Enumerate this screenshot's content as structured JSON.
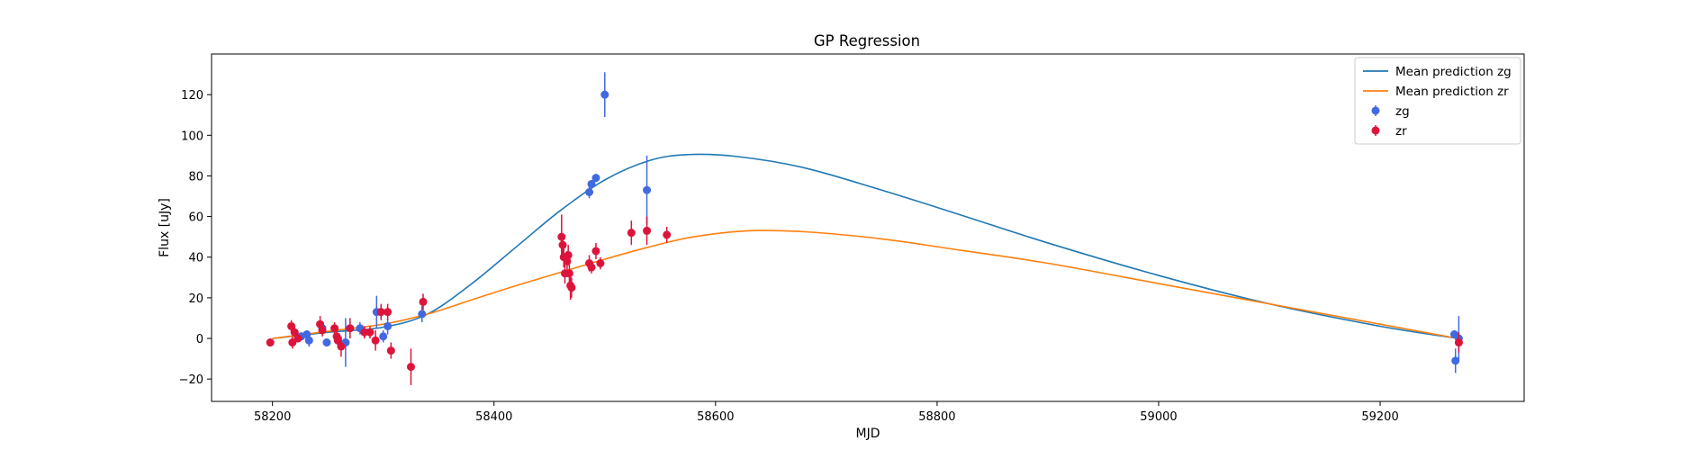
{
  "chart_data": {
    "type": "scatter",
    "title": "GP Regression",
    "xlabel": "MJD",
    "ylabel": "Flux [uJy]",
    "xlim": [
      58145,
      59330
    ],
    "ylim": [
      -31,
      140
    ],
    "xticks": [
      58200,
      58400,
      58600,
      58800,
      59000,
      59200
    ],
    "yticks": [
      -20,
      0,
      20,
      40,
      60,
      80,
      100,
      120
    ],
    "grid": false,
    "legend_position": "top-right",
    "lines": [
      {
        "name": "Mean prediction zg",
        "color": "#1f77b4",
        "x": [
          58200,
          58250,
          58300,
          58340,
          58380,
          58420,
          58460,
          58500,
          58540,
          58575,
          58620,
          58680,
          58750,
          58820,
          58900,
          59000,
          59100,
          59200,
          59270
        ],
        "y": [
          0,
          3,
          5.5,
          12,
          27,
          45,
          63,
          78,
          87.5,
          90.5,
          89.5,
          84,
          73,
          61,
          47,
          31,
          17,
          6,
          0
        ]
      },
      {
        "name": "Mean prediction zr",
        "color": "#ff7f0e",
        "x": [
          58200,
          58250,
          58300,
          58340,
          58380,
          58420,
          58460,
          58500,
          58540,
          58580,
          58630,
          58680,
          58750,
          58820,
          58900,
          59000,
          59100,
          59200,
          59270
        ],
        "y": [
          0,
          3.5,
          7,
          12,
          19,
          26,
          32.5,
          39,
          45,
          50,
          53,
          52.5,
          49,
          43.5,
          37,
          27,
          17,
          7,
          0
        ]
      }
    ],
    "series": [
      {
        "name": "zg",
        "color": "#4169e1",
        "points": [
          {
            "x": 58226,
            "y": 1,
            "err": 2
          },
          {
            "x": 58231,
            "y": 2,
            "err": 2
          },
          {
            "x": 58233,
            "y": -1,
            "err": 3
          },
          {
            "x": 58245,
            "y": 5,
            "err": 3
          },
          {
            "x": 58249,
            "y": -2,
            "err": 2
          },
          {
            "x": 58262,
            "y": -3,
            "err": 3
          },
          {
            "x": 58266,
            "y": -2,
            "err": 12
          },
          {
            "x": 58279,
            "y": 5,
            "err": 3
          },
          {
            "x": 58294,
            "y": 13,
            "err": 8
          },
          {
            "x": 58300,
            "y": 1,
            "err": 3
          },
          {
            "x": 58304,
            "y": 6,
            "err": 4
          },
          {
            "x": 58335,
            "y": 12,
            "err": 4
          },
          {
            "x": 58486,
            "y": 72,
            "err": 3
          },
          {
            "x": 58488,
            "y": 76,
            "err": 2
          },
          {
            "x": 58492,
            "y": 79,
            "err": 2
          },
          {
            "x": 58500,
            "y": 120,
            "err": 11
          },
          {
            "x": 58538,
            "y": 73,
            "err": 17
          },
          {
            "x": 59267,
            "y": 2,
            "err": 2
          },
          {
            "x": 59268,
            "y": -11,
            "err": 6
          },
          {
            "x": 59271,
            "y": 0,
            "err": 11
          }
        ]
      },
      {
        "name": "zr",
        "color": "#dc143c",
        "points": [
          {
            "x": 58198,
            "y": -2,
            "err": 2
          },
          {
            "x": 58217,
            "y": 6,
            "err": 3
          },
          {
            "x": 58218,
            "y": -2,
            "err": 3
          },
          {
            "x": 58220,
            "y": 3,
            "err": 3
          },
          {
            "x": 58223,
            "y": 0,
            "err": 2
          },
          {
            "x": 58243,
            "y": 7,
            "err": 4
          },
          {
            "x": 58245,
            "y": 4,
            "err": 3
          },
          {
            "x": 58256,
            "y": 5,
            "err": 3
          },
          {
            "x": 58258,
            "y": 1,
            "err": 3
          },
          {
            "x": 58259,
            "y": -1,
            "err": 3
          },
          {
            "x": 58262,
            "y": -4,
            "err": 5
          },
          {
            "x": 58270,
            "y": 5,
            "err": 5
          },
          {
            "x": 58283,
            "y": 3,
            "err": 3
          },
          {
            "x": 58288,
            "y": 3,
            "err": 3
          },
          {
            "x": 58293,
            "y": -1,
            "err": 5
          },
          {
            "x": 58298,
            "y": 13,
            "err": 4
          },
          {
            "x": 58304,
            "y": 13,
            "err": 4
          },
          {
            "x": 58307,
            "y": -6,
            "err": 4
          },
          {
            "x": 58325,
            "y": -14,
            "err": 9
          },
          {
            "x": 58336,
            "y": 18,
            "err": 4
          },
          {
            "x": 58461,
            "y": 50,
            "err": 11
          },
          {
            "x": 58462,
            "y": 46,
            "err": 5
          },
          {
            "x": 58463,
            "y": 40,
            "err": 5
          },
          {
            "x": 58464,
            "y": 32,
            "err": 5
          },
          {
            "x": 58466,
            "y": 38,
            "err": 5
          },
          {
            "x": 58467,
            "y": 41,
            "err": 5
          },
          {
            "x": 58468,
            "y": 32,
            "err": 5
          },
          {
            "x": 58469,
            "y": 26,
            "err": 7
          },
          {
            "x": 58470,
            "y": 25,
            "err": 5
          },
          {
            "x": 58486,
            "y": 37,
            "err": 4
          },
          {
            "x": 58488,
            "y": 35,
            "err": 3
          },
          {
            "x": 58492,
            "y": 43,
            "err": 4
          },
          {
            "x": 58496,
            "y": 37,
            "err": 3
          },
          {
            "x": 58524,
            "y": 52,
            "err": 6
          },
          {
            "x": 58538,
            "y": 53,
            "err": 7
          },
          {
            "x": 58556,
            "y": 51,
            "err": 4
          },
          {
            "x": 59271,
            "y": -2,
            "err": 5
          }
        ]
      }
    ]
  }
}
